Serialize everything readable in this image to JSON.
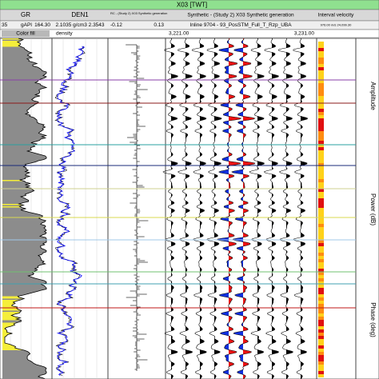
{
  "header": {
    "title": "X03 [TWT]"
  },
  "tracks": [
    {
      "name": "GR",
      "scale_min": "35",
      "unit": "gAPI",
      "scale_max": "164.30",
      "fill_label": "Color fill"
    },
    {
      "name": "DEN1",
      "scale": "2.1035 g/cm3 2.3543",
      "label": "density"
    },
    {
      "name": "RC - (Study 2) X03 Synthetic generation",
      "scale_min": "-0.12",
      "scale_max": "0.13"
    },
    {
      "name": "Synthetic - (Study 2) X03 Synthetic generation",
      "scale": "Inline 9704 - 93_PosSTM_Full_T_Rzp_UBA",
      "scale_min": "3,221.00",
      "scale_max": "3,231.00"
    },
    {
      "name": "Interval velocity",
      "scale": "976.00 m/s 24,099.30"
    }
  ],
  "side_labels": [
    "Amplitude",
    "Power (dB)",
    "Phase (deg)"
  ]
}
